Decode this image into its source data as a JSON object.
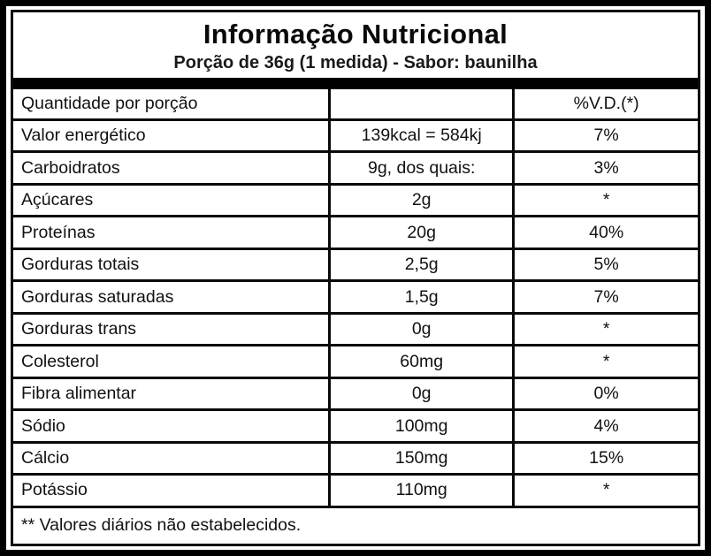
{
  "label": {
    "title": "Informação Nutricional",
    "subtitle": "Porção de 36g (1 medida) - Sabor: baunilha",
    "columns": {
      "quantity_header": "Quantidade por porção",
      "amount_header": "",
      "dv_header": "%V.D.(*)"
    },
    "rows": [
      {
        "name": "Valor energético",
        "amount": "139kcal = 584kj",
        "dv": "7%"
      },
      {
        "name": "Carboidratos",
        "amount": "9g, dos quais:",
        "dv": "3%"
      },
      {
        "name": "Açúcares",
        "amount": "2g",
        "dv": "*"
      },
      {
        "name": "Proteínas",
        "amount": "20g",
        "dv": "40%"
      },
      {
        "name": "Gorduras totais",
        "amount": "2,5g",
        "dv": "5%"
      },
      {
        "name": "Gorduras saturadas",
        "amount": "1,5g",
        "dv": "7%"
      },
      {
        "name": "Gorduras trans",
        "amount": "0g",
        "dv": "*"
      },
      {
        "name": "Colesterol",
        "amount": "60mg",
        "dv": "*"
      },
      {
        "name": "Fibra alimentar",
        "amount": "0g",
        "dv": "0%"
      },
      {
        "name": "Sódio",
        "amount": "100mg",
        "dv": "4%"
      },
      {
        "name": "Cálcio",
        "amount": "150mg",
        "dv": "15%"
      },
      {
        "name": "Potássio",
        "amount": "110mg",
        "dv": "*"
      }
    ],
    "footnote": "** Valores diários não estabelecidos.",
    "colors": {
      "border": "#000000",
      "background": "#ffffff",
      "text": "#111111"
    }
  }
}
